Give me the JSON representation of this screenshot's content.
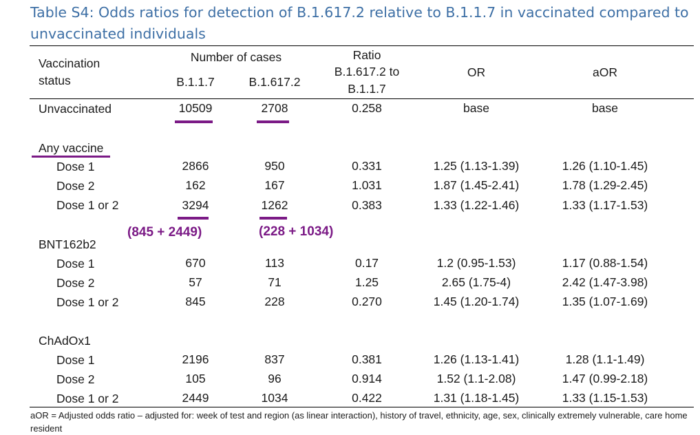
{
  "title": "Table S4: Odds ratios for detection of B.1.617.2 relative to B.1.1.7 in vaccinated compared to unvaccinated individuals",
  "headers": {
    "status_line1": "Vaccination",
    "status_line2": "status",
    "cases_group": "Number of cases",
    "b117": "B.1.1.7",
    "b16172": "B.1.617.2",
    "ratio_line1": "Ratio",
    "ratio_line2": "B.1.617.2 to",
    "ratio_line3": "B.1.1.7",
    "or": "OR",
    "aor": "aOR"
  },
  "unvaccinated": {
    "label": "Unvaccinated",
    "b117": "10509",
    "b16172": "2708",
    "ratio": "0.258",
    "or": "base",
    "aor": "base"
  },
  "sections": [
    {
      "label": "Any vaccine",
      "rows": [
        {
          "label": "Dose 1",
          "b117": "2866",
          "b16172": "950",
          "ratio": "0.331",
          "or": "1.25 (1.13-1.39)",
          "aor": "1.26 (1.10-1.45)"
        },
        {
          "label": "Dose 2",
          "b117": "162",
          "b16172": "167",
          "ratio": "1.031",
          "or": "1.87 (1.45-2.41)",
          "aor": "1.78 (1.29-2.45)"
        },
        {
          "label": "Dose 1 or 2",
          "b117": "3294",
          "b16172": "1262",
          "ratio": "0.383",
          "or": "1.33 (1.22-1.46)",
          "aor": "1.33 (1.17-1.53)"
        }
      ]
    },
    {
      "label": "BNT162b2",
      "rows": [
        {
          "label": "Dose 1",
          "b117": "670",
          "b16172": "113",
          "ratio": "0.17",
          "or": "1.2 (0.95-1.53)",
          "aor": "1.17 (0.88-1.54)"
        },
        {
          "label": "Dose 2",
          "b117": "57",
          "b16172": "71",
          "ratio": "1.25",
          "or": "2.65 (1.75-4)",
          "aor": "2.42 (1.47-3.98)"
        },
        {
          "label": "Dose 1 or 2",
          "b117": "845",
          "b16172": "228",
          "ratio": "0.270",
          "or": "1.45 (1.20-1.74)",
          "aor": "1.35 (1.07-1.69)"
        }
      ]
    },
    {
      "label": "ChAdOx1",
      "rows": [
        {
          "label": "Dose 1",
          "b117": "2196",
          "b16172": "837",
          "ratio": "0.381",
          "or": "1.26 (1.13-1.41)",
          "aor": "1.28 (1.1-1.49)"
        },
        {
          "label": "Dose 2",
          "b117": "105",
          "b16172": "96",
          "ratio": "0.914",
          "or": "1.52 (1.1-2.08)",
          "aor": "1.47 (0.99-2.18)"
        },
        {
          "label": "Dose 1 or 2",
          "b117": "2449",
          "b16172": "1034",
          "ratio": "0.422",
          "or": "1.31 (1.18-1.45)",
          "aor": "1.33 (1.15-1.53)"
        }
      ]
    }
  ],
  "annotations": {
    "b117_sum": "(845 + 2449)",
    "b16172_sum": "(228 + 1034)",
    "color": "#7b1a86"
  },
  "footnote": "aOR = Adjusted odds ratio – adjusted for: week of test and region (as linear interaction), history of travel, ethnicity, age, sex, clinically extremely vulnerable, care home resident",
  "colors": {
    "title": "#3d6fa5",
    "highlight": "#7b1a86"
  }
}
